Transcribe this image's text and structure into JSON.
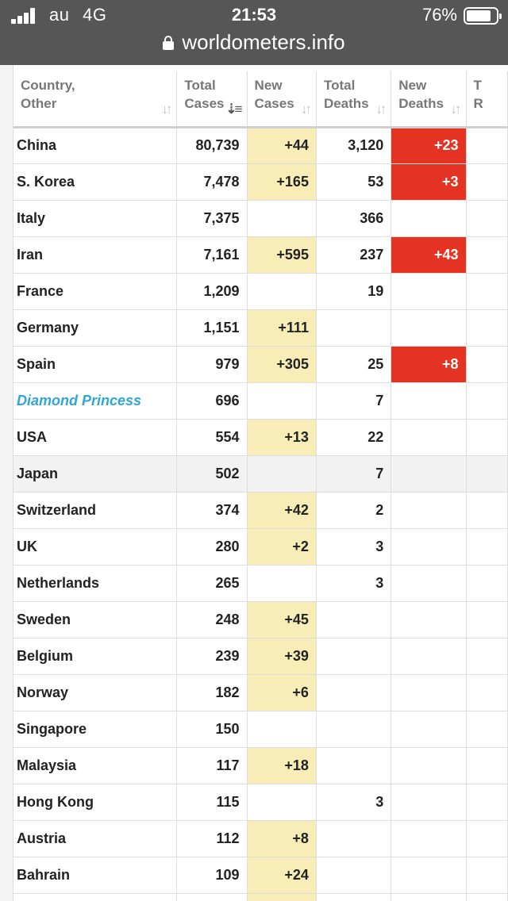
{
  "status_bar": {
    "carrier": "au",
    "network": "4G",
    "time": "21:53",
    "battery": "76%"
  },
  "browser": {
    "url": "worldometers.info"
  },
  "icons": {
    "signal": "signal-bars-icon",
    "battery": "battery-icon",
    "lock": "lock-icon",
    "sort": "sort-arrows-icon"
  },
  "colors": {
    "new_cases_highlight": "#f8edb7",
    "new_deaths_highlight": "#e43323",
    "special_row_text": "#2fa6d8"
  },
  "table": {
    "headers": [
      {
        "line1": "Country,",
        "line2": "Other"
      },
      {
        "line1": "Total",
        "line2": "Cases"
      },
      {
        "line1": "New",
        "line2": "Cases"
      },
      {
        "line1": "Total",
        "line2": "Deaths"
      },
      {
        "line1": "New",
        "line2": "Deaths"
      },
      {
        "line1": "T",
        "line2": "R"
      }
    ],
    "sorted_column": "Total Cases",
    "rows": [
      {
        "country": "China",
        "total_cases": "80,739",
        "new_cases": "+44",
        "total_deaths": "3,120",
        "new_deaths": "+23"
      },
      {
        "country": "S. Korea",
        "total_cases": "7,478",
        "new_cases": "+165",
        "total_deaths": "53",
        "new_deaths": "+3"
      },
      {
        "country": "Italy",
        "total_cases": "7,375",
        "new_cases": "",
        "total_deaths": "366",
        "new_deaths": ""
      },
      {
        "country": "Iran",
        "total_cases": "7,161",
        "new_cases": "+595",
        "total_deaths": "237",
        "new_deaths": "+43"
      },
      {
        "country": "France",
        "total_cases": "1,209",
        "new_cases": "",
        "total_deaths": "19",
        "new_deaths": ""
      },
      {
        "country": "Germany",
        "total_cases": "1,151",
        "new_cases": "+111",
        "total_deaths": "",
        "new_deaths": ""
      },
      {
        "country": "Spain",
        "total_cases": "979",
        "new_cases": "+305",
        "total_deaths": "25",
        "new_deaths": "+8"
      },
      {
        "country": "Diamond Princess",
        "total_cases": "696",
        "new_cases": "",
        "total_deaths": "7",
        "new_deaths": "",
        "special": true
      },
      {
        "country": "USA",
        "total_cases": "554",
        "new_cases": "+13",
        "total_deaths": "22",
        "new_deaths": ""
      },
      {
        "country": "Japan",
        "total_cases": "502",
        "new_cases": "",
        "total_deaths": "7",
        "new_deaths": "",
        "highlighted": true
      },
      {
        "country": "Switzerland",
        "total_cases": "374",
        "new_cases": "+42",
        "total_deaths": "2",
        "new_deaths": ""
      },
      {
        "country": "UK",
        "total_cases": "280",
        "new_cases": "+2",
        "total_deaths": "3",
        "new_deaths": ""
      },
      {
        "country": "Netherlands",
        "total_cases": "265",
        "new_cases": "",
        "total_deaths": "3",
        "new_deaths": ""
      },
      {
        "country": "Sweden",
        "total_cases": "248",
        "new_cases": "+45",
        "total_deaths": "",
        "new_deaths": ""
      },
      {
        "country": "Belgium",
        "total_cases": "239",
        "new_cases": "+39",
        "total_deaths": "",
        "new_deaths": ""
      },
      {
        "country": "Norway",
        "total_cases": "182",
        "new_cases": "+6",
        "total_deaths": "",
        "new_deaths": ""
      },
      {
        "country": "Singapore",
        "total_cases": "150",
        "new_cases": "",
        "total_deaths": "",
        "new_deaths": ""
      },
      {
        "country": "Malaysia",
        "total_cases": "117",
        "new_cases": "+18",
        "total_deaths": "",
        "new_deaths": ""
      },
      {
        "country": "Hong Kong",
        "total_cases": "115",
        "new_cases": "",
        "total_deaths": "3",
        "new_deaths": ""
      },
      {
        "country": "Austria",
        "total_cases": "112",
        "new_cases": "+8",
        "total_deaths": "",
        "new_deaths": ""
      },
      {
        "country": "Bahrain",
        "total_cases": "109",
        "new_cases": "+24",
        "total_deaths": "",
        "new_deaths": ""
      },
      {
        "country": "",
        "total_cases": "",
        "new_cases": "",
        "total_deaths": "",
        "new_deaths": "",
        "partial_new_cases_highlight": true
      }
    ]
  }
}
